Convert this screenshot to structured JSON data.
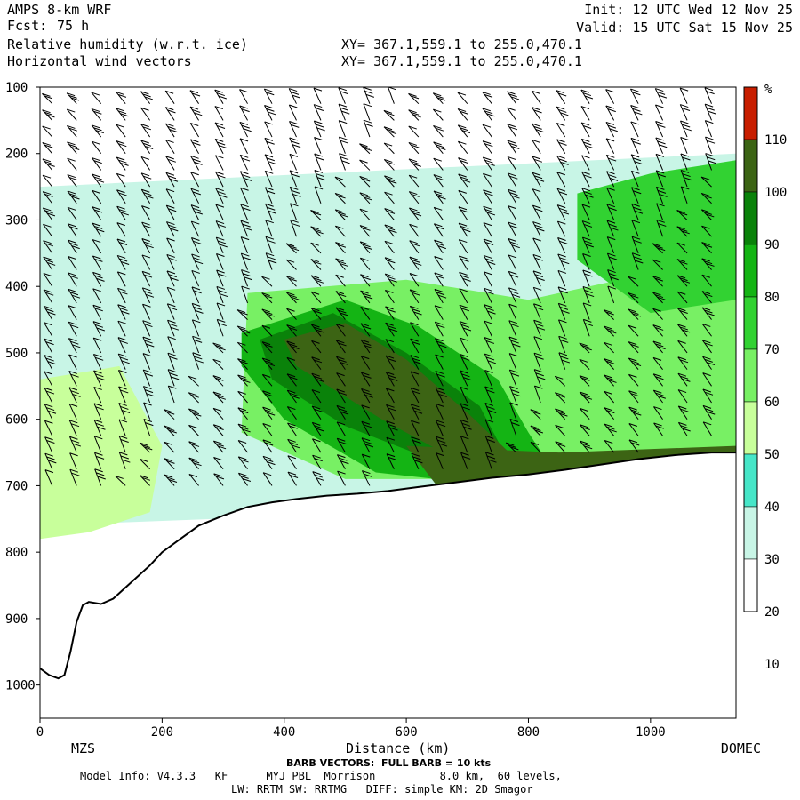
{
  "header": {
    "model": "AMPS 8-km WRF",
    "fcst_label": "Fcst:",
    "fcst_value": "75 h",
    "field1": "Relative humidity (w.r.t. ice)",
    "field2": "Horizontal wind vectors",
    "xy1": "XY= 367.1,559.1 to 255.0,470.1",
    "xy2": "XY= 367.1,559.1 to 255.0,470.1",
    "init": "Init: 12 UTC Wed 12 Nov 25",
    "valid": "Valid: 15 UTC Sat 15 Nov 25"
  },
  "footer": {
    "left_station": "MZS",
    "right_station": "DOMEC",
    "xlabel": "Distance (km)",
    "barb_note": "BARB VECTORS:  FULL BARB = 10 kts",
    "model_info": "Model Info: V4.3.3   KF      MYJ PBL  Morrison          8.0 km,  60 levels,",
    "physics": "LW: RRTM SW: RRTMG   DIFF: simple KM: 2D Smagor"
  },
  "colors": {
    "c0": "#ffffff",
    "c30": "#c8f5e6",
    "c40": "#46e6c8",
    "c50": "#c8ff9b",
    "c60": "#78f064",
    "c70": "#32d232",
    "c80": "#14b414",
    "c90": "#0a820a",
    "c100": "#3c6414",
    "c110": "#c81e00",
    "terrain": "#000000"
  },
  "chart_data": {
    "type": "heatmap",
    "title": "Relative humidity (w.r.t. ice)",
    "xlabel": "Distance (km)",
    "ylabel": "",
    "xlim": [
      0,
      1140
    ],
    "ylim": [
      1050,
      100
    ],
    "x_ticks": [
      0,
      200,
      400,
      600,
      800,
      1000
    ],
    "y_ticks": [
      100,
      200,
      300,
      400,
      500,
      600,
      700,
      800,
      900,
      1000
    ],
    "colorbar": {
      "unit": "%",
      "levels": [
        10,
        20,
        30,
        40,
        50,
        60,
        70,
        80,
        90,
        100,
        110
      ],
      "bins": [
        {
          "from": 0,
          "to": 30,
          "color": "#ffffff"
        },
        {
          "from": 30,
          "to": 40,
          "color": "#c8f5e6"
        },
        {
          "from": 40,
          "to": 50,
          "color": "#46e6c8"
        },
        {
          "from": 50,
          "to": 60,
          "color": "#c8ff9b"
        },
        {
          "from": 60,
          "to": 70,
          "color": "#78f064"
        },
        {
          "from": 70,
          "to": 80,
          "color": "#32d232"
        },
        {
          "from": 80,
          "to": 90,
          "color": "#14b414"
        },
        {
          "from": 90,
          "to": 100,
          "color": "#0a820a"
        },
        {
          "from": 100,
          "to": 110,
          "color": "#3c6414"
        },
        {
          "from": 110,
          "to": 120,
          "color": "#c81e00"
        }
      ]
    },
    "terrain_surface": {
      "distance_km": [
        0,
        15,
        30,
        40,
        50,
        60,
        70,
        80,
        100,
        120,
        150,
        180,
        200,
        230,
        260,
        300,
        340,
        380,
        420,
        470,
        520,
        570,
        620,
        680,
        740,
        800,
        860,
        920,
        980,
        1040,
        1100,
        1140
      ],
      "pressure_hpa": [
        975,
        985,
        990,
        985,
        950,
        905,
        880,
        875,
        878,
        870,
        845,
        820,
        800,
        780,
        760,
        745,
        732,
        725,
        720,
        715,
        712,
        708,
        702,
        695,
        688,
        683,
        676,
        668,
        660,
        654,
        650,
        650
      ]
    },
    "rh_regions": [
      {
        "level": 30,
        "x": [
          0,
          1140,
          1140,
          0
        ],
        "p": [
          250,
          200,
          720,
          760
        ]
      },
      {
        "level": 50,
        "x": [
          0,
          130,
          200,
          180,
          80,
          0
        ],
        "p": [
          540,
          520,
          640,
          740,
          770,
          780
        ]
      },
      {
        "level": 60,
        "x": [
          340,
          600,
          800,
          1000,
          1140,
          1140,
          900,
          700,
          500,
          330
        ],
        "p": [
          410,
          390,
          420,
          380,
          300,
          720,
          690,
          690,
          690,
          620
        ]
      },
      {
        "level": 70,
        "x": [
          880,
          1000,
          1140,
          1140,
          1000,
          880
        ],
        "p": [
          260,
          230,
          210,
          420,
          440,
          360
        ]
      },
      {
        "level": 80,
        "x": [
          330,
          500,
          620,
          750,
          800,
          850,
          750,
          550,
          400,
          330
        ],
        "p": [
          470,
          420,
          460,
          540,
          620,
          690,
          700,
          680,
          600,
          520
        ]
      },
      {
        "level": 90,
        "x": [
          360,
          480,
          600,
          720,
          760,
          640,
          500,
          380
        ],
        "p": [
          480,
          440,
          500,
          580,
          650,
          660,
          610,
          540
        ]
      },
      {
        "level": 100,
        "x": [
          400,
          500,
          600,
          700,
          780,
          700,
          560,
          420
        ],
        "p": [
          480,
          455,
          510,
          590,
          660,
          670,
          600,
          520
        ]
      },
      {
        "level": 100,
        "x": [
          600,
          850,
          1140,
          1140,
          900,
          650
        ],
        "p": [
          640,
          650,
          640,
          665,
          680,
          700
        ]
      }
    ],
    "wind_barbs": {
      "columns_km": [
        20,
        60,
        100,
        140,
        180,
        220,
        260,
        300,
        340,
        380,
        420,
        460,
        500,
        540,
        580,
        620,
        660,
        700,
        740,
        780,
        820,
        860,
        900,
        940,
        980,
        1020,
        1060,
        1100
      ],
      "pressure_hpa": [
        100,
        125,
        150,
        175,
        200,
        225,
        250,
        275,
        300,
        325,
        350,
        375,
        400,
        425,
        450,
        475,
        500,
        525,
        550,
        575,
        600,
        625,
        650,
        675,
        700
      ],
      "note": "northerly/northwesterly flow, speeds roughly 10-40 kts"
    }
  }
}
